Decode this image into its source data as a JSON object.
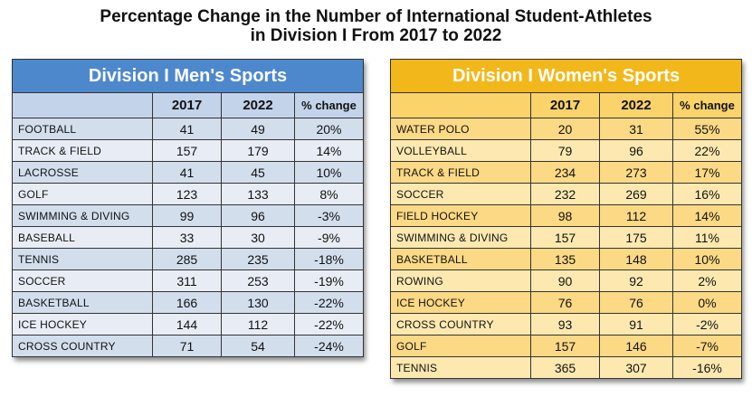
{
  "chart_data": {
    "type": "table",
    "title_line1": "Percentage Change in the Number of International Student-Athletes",
    "title_line2": "in Division I From 2017 to 2022",
    "columns": [
      "2017",
      "2022",
      "% change"
    ],
    "tables": [
      {
        "title": "Division I Men's Sports",
        "header_color": "#4e88cc",
        "rows": [
          {
            "sport": "FOOTBALL",
            "y2017": 41,
            "y2022": 49,
            "change": "20%"
          },
          {
            "sport": "TRACK & FIELD",
            "y2017": 157,
            "y2022": 179,
            "change": "14%"
          },
          {
            "sport": "LACROSSE",
            "y2017": 41,
            "y2022": 45,
            "change": "10%"
          },
          {
            "sport": "GOLF",
            "y2017": 123,
            "y2022": 133,
            "change": "8%"
          },
          {
            "sport": "SWIMMING & DIVING",
            "y2017": 99,
            "y2022": 96,
            "change": "-3%"
          },
          {
            "sport": "BASEBALL",
            "y2017": 33,
            "y2022": 30,
            "change": "-9%"
          },
          {
            "sport": "TENNIS",
            "y2017": 285,
            "y2022": 235,
            "change": "-18%"
          },
          {
            "sport": "SOCCER",
            "y2017": 311,
            "y2022": 253,
            "change": "-19%"
          },
          {
            "sport": "BASKETBALL",
            "y2017": 166,
            "y2022": 130,
            "change": "-22%"
          },
          {
            "sport": "ICE HOCKEY",
            "y2017": 144,
            "y2022": 112,
            "change": "-22%"
          },
          {
            "sport": "CROSS COUNTRY",
            "y2017": 71,
            "y2022": 54,
            "change": "-24%"
          }
        ]
      },
      {
        "title": "Division I Women's Sports",
        "header_color": "#f2b71a",
        "rows": [
          {
            "sport": "WATER POLO",
            "y2017": 20,
            "y2022": 31,
            "change": "55%"
          },
          {
            "sport": "VOLLEYBALL",
            "y2017": 79,
            "y2022": 96,
            "change": "22%"
          },
          {
            "sport": "TRACK & FIELD",
            "y2017": 234,
            "y2022": 273,
            "change": "17%"
          },
          {
            "sport": "SOCCER",
            "y2017": 232,
            "y2022": 269,
            "change": "16%"
          },
          {
            "sport": "FIELD HOCKEY",
            "y2017": 98,
            "y2022": 112,
            "change": "14%"
          },
          {
            "sport": "SWIMMING & DIVING",
            "y2017": 157,
            "y2022": 175,
            "change": "11%"
          },
          {
            "sport": "BASKETBALL",
            "y2017": 135,
            "y2022": 148,
            "change": "10%"
          },
          {
            "sport": "ROWING",
            "y2017": 90,
            "y2022": 92,
            "change": "2%"
          },
          {
            "sport": "ICE HOCKEY",
            "y2017": 76,
            "y2022": 76,
            "change": "0%"
          },
          {
            "sport": "CROSS COUNTRY",
            "y2017": 93,
            "y2022": 91,
            "change": "-2%"
          },
          {
            "sport": "GOLF",
            "y2017": 157,
            "y2022": 146,
            "change": "-7%"
          },
          {
            "sport": "TENNIS",
            "y2017": 365,
            "y2022": 307,
            "change": "-16%"
          }
        ]
      }
    ]
  }
}
